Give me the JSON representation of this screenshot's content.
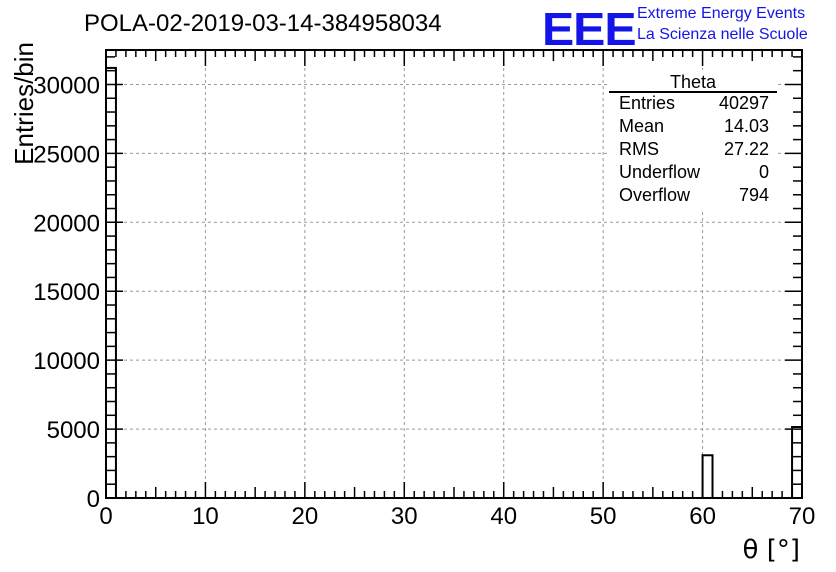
{
  "header": {
    "title": "POLA-02-2019-03-14-384958034",
    "logo": "EEE",
    "logo_line1": "Extreme Energy Events",
    "logo_line2": "La Scienza nelle Scuole"
  },
  "stats_box": {
    "title": "Theta",
    "rows": [
      {
        "key": "Entries",
        "value": "40297"
      },
      {
        "key": "Mean",
        "value": "14.03"
      },
      {
        "key": "RMS",
        "value": "27.22"
      },
      {
        "key": "Underflow",
        "value": "0"
      },
      {
        "key": "Overflow",
        "value": "794"
      }
    ]
  },
  "colors": {
    "logo": "#1414e6",
    "axis": "#000000",
    "grid": "#999999"
  },
  "chart_data": {
    "type": "bar",
    "title": "POLA-02-2019-03-14-384958034",
    "xlabel": "θ [°]",
    "ylabel": "Entries/bin",
    "xlim": [
      0,
      70
    ],
    "ylim": [
      0,
      32500
    ],
    "bin_width": 1,
    "grid": true,
    "xticks": [
      0,
      10,
      20,
      30,
      40,
      50,
      60,
      70
    ],
    "yticks": [
      0,
      5000,
      10000,
      15000,
      20000,
      25000,
      30000
    ],
    "bins": [
      {
        "x": 0,
        "value": 31200
      },
      {
        "x": 60,
        "value": 3100
      },
      {
        "x": 69,
        "value": 5150
      }
    ]
  }
}
